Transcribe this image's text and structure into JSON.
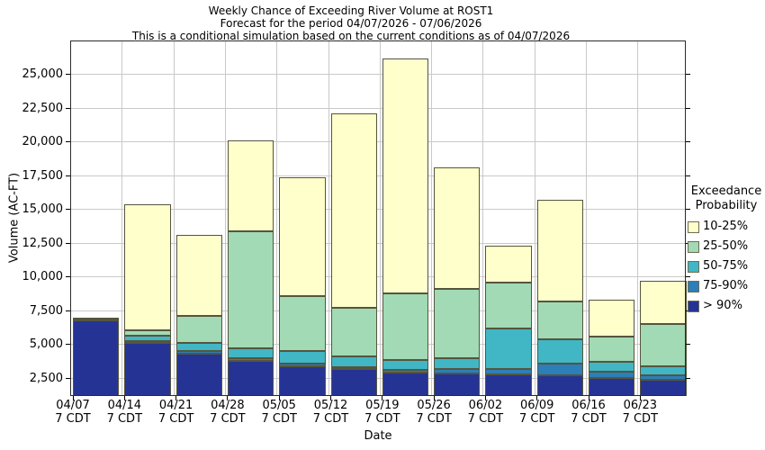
{
  "title": {
    "line1": "Weekly Chance of Exceeding River Volume at ROST1",
    "line2": "Forecast for the period 04/07/2026 - 07/06/2026",
    "line3": "This is a conditional simulation based on the current conditions as of 04/07/2026"
  },
  "y_axis": {
    "label": "Volume (AC-FT)",
    "tick_labels": [
      "2,500",
      "5,000",
      "7,500",
      "10,000",
      "12,500",
      "15,000",
      "17,500",
      "20,000",
      "22,500",
      "25,000"
    ]
  },
  "x_axis": {
    "label": "Date",
    "sub_label": "7 CDT"
  },
  "legend": {
    "title_line1": "Exceedance",
    "title_line2": "Probability",
    "items": [
      {
        "label": "10-25%",
        "color": "#FFFFCC"
      },
      {
        "label": "25-50%",
        "color": "#A1DAB4"
      },
      {
        "label": "50-75%",
        "color": "#41B6C4"
      },
      {
        "label": "75-90%",
        "color": "#2C7FB8"
      },
      {
        "label": "> 90%",
        "color": "#253494"
      }
    ]
  },
  "chart_data": {
    "type": "bar",
    "stacked": true,
    "title": "Weekly Chance of Exceeding River Volume at ROST1",
    "xlabel": "Date",
    "ylabel": "Volume (AC-FT)",
    "ylim": [
      1200,
      27500
    ],
    "yticks": [
      2500,
      5000,
      7500,
      10000,
      12500,
      15000,
      17500,
      20000,
      22500,
      25000
    ],
    "grid": true,
    "legend_position": "right",
    "categories": [
      "04/07",
      "04/14",
      "04/21",
      "04/28",
      "05/05",
      "05/12",
      "05/19",
      "05/26",
      "06/02",
      "06/09",
      "06/16",
      "06/23"
    ],
    "category_sub_label": "7 CDT",
    "series_note": "tops = cumulative upper boundary (AC-FT) of each probability band, bottom-to-top stacking order",
    "series": [
      {
        "name": "> 90%",
        "color": "#253494",
        "tops": [
          6800,
          5100,
          4300,
          3800,
          3400,
          3200,
          2900,
          2850,
          2800,
          2700,
          2500,
          2400
        ]
      },
      {
        "name": "75-90%",
        "color": "#2C7FB8",
        "tops": [
          6850,
          5250,
          4500,
          4000,
          3600,
          3350,
          3100,
          3200,
          3200,
          3600,
          3000,
          2700
        ]
      },
      {
        "name": "50-75%",
        "color": "#41B6C4",
        "tops": [
          6900,
          5650,
          5100,
          4700,
          4500,
          4100,
          3850,
          4000,
          6200,
          5400,
          3700,
          3400
        ]
      },
      {
        "name": "25-50%",
        "color": "#A1DAB4",
        "tops": [
          6950,
          6050,
          7100,
          13400,
          8600,
          7750,
          8800,
          9100,
          9600,
          8200,
          5600,
          6500
        ]
      },
      {
        "name": "10-25%",
        "color": "#FFFFCC",
        "tops": [
          7000,
          15400,
          13100,
          20100,
          17400,
          22100,
          26200,
          18100,
          12300,
          15700,
          8300,
          9700
        ]
      }
    ]
  }
}
